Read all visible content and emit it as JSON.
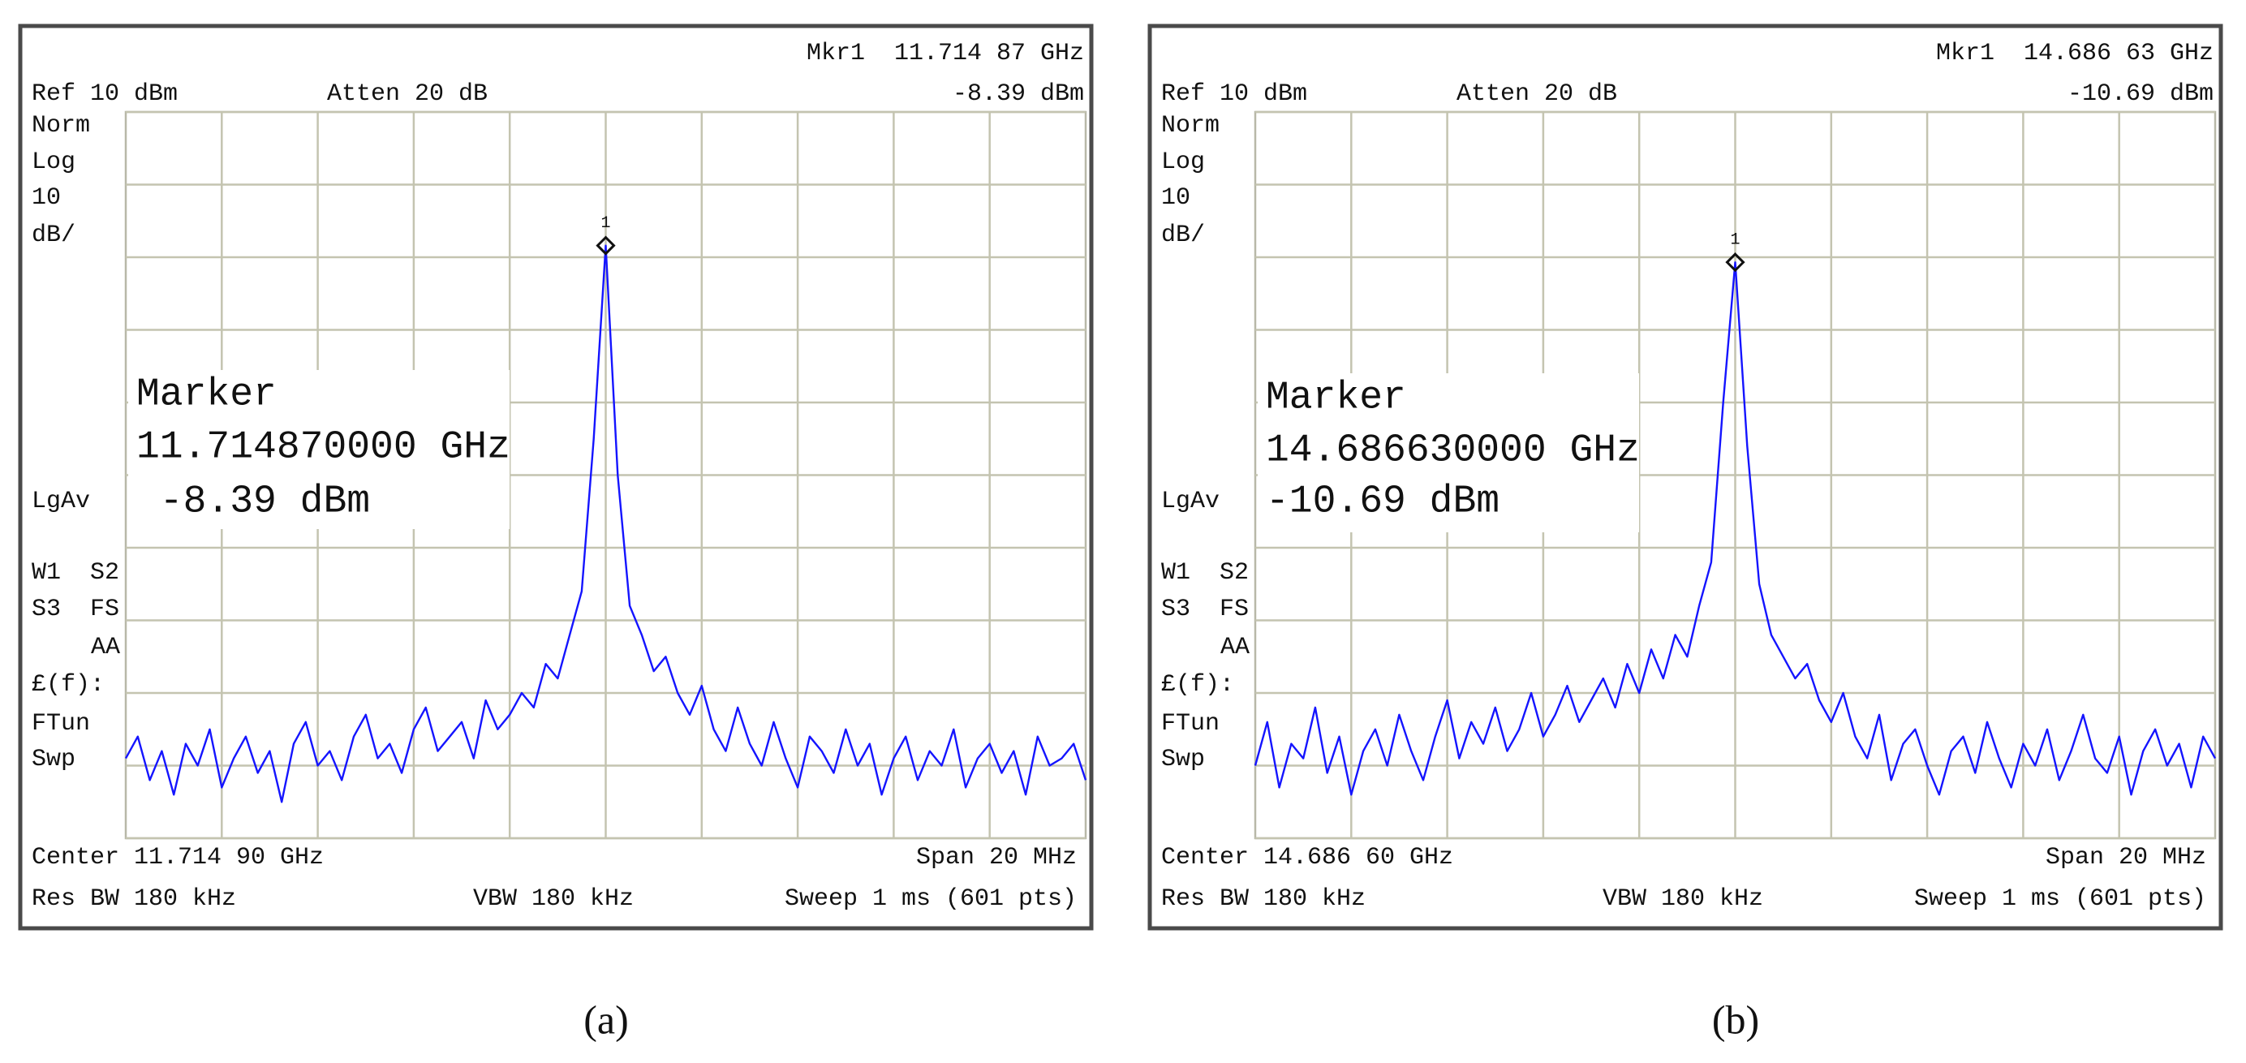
{
  "chart_data": [
    {
      "type": "line",
      "caption": "(a)",
      "color": "#1414ff",
      "ylim": [
        -90,
        10
      ],
      "yticks": [
        -90,
        -80,
        -70,
        -60,
        -50,
        -40,
        -30,
        -20,
        -10,
        0,
        10
      ],
      "grid": true,
      "header": {
        "marker_readout": "Mkr1  11.714 87 GHz",
        "marker_level": "-8.39 dBm",
        "ref": "Ref 10 dBm",
        "atten": "Atten 20 dB"
      },
      "side_labels": [
        "Norm",
        "Log",
        "10",
        "dB/",
        "LgAv",
        "W1  S2",
        "S3  FS",
        "AA",
        "£(f):",
        "FTun",
        "Swp"
      ],
      "marker": {
        "id": "1",
        "title": "Marker",
        "frequency": "11.714870000 GHz",
        "level": " -8.39 dBm",
        "value": -8.39
      },
      "footer": {
        "center": "Center 11.714 90 GHz",
        "span": "Span 20 MHz",
        "rbw": "Res BW 180 kHz",
        "vbw": "VBW 180 kHz",
        "sweep": "Sweep 1 ms (601 pts)"
      },
      "values": [
        -79,
        -76,
        -82,
        -78,
        -84,
        -77,
        -80,
        -75,
        -83,
        -79,
        -76,
        -81,
        -78,
        -85,
        -77,
        -74,
        -80,
        -78,
        -82,
        -76,
        -73,
        -79,
        -77,
        -81,
        -75,
        -72,
        -78,
        -76,
        -74,
        -79,
        -71,
        -75,
        -73,
        -70,
        -72,
        -66,
        -68,
        -62,
        -56,
        -35,
        -8.4,
        -40,
        -58,
        -62,
        -67,
        -65,
        -70,
        -73,
        -69,
        -75,
        -78,
        -72,
        -77,
        -80,
        -74,
        -79,
        -83,
        -76,
        -78,
        -81,
        -75,
        -80,
        -77,
        -84,
        -79,
        -76,
        -82,
        -78,
        -80,
        -75,
        -83,
        -79,
        -77,
        -81,
        -78,
        -84,
        -76,
        -80,
        -79,
        -77,
        -82
      ]
    },
    {
      "type": "line",
      "caption": "(b)",
      "color": "#1414ff",
      "ylim": [
        -90,
        10
      ],
      "yticks": [
        -90,
        -80,
        -70,
        -60,
        -50,
        -40,
        -30,
        -20,
        -10,
        0,
        10
      ],
      "grid": true,
      "header": {
        "marker_readout": "Mkr1  14.686 63 GHz",
        "marker_level": "-10.69 dBm",
        "ref": "Ref 10 dBm",
        "atten": "Atten 20 dB"
      },
      "side_labels": [
        "Norm",
        "Log",
        "10",
        "dB/",
        "LgAv",
        "W1  S2",
        "S3  FS",
        "AA",
        "£(f):",
        "FTun",
        "Swp"
      ],
      "marker": {
        "id": "1",
        "title": "Marker",
        "frequency": "14.686630000 GHz",
        "level": "-10.69 dBm",
        "value": -10.69
      },
      "footer": {
        "center": "Center 14.686 60 GHz",
        "span": "Span 20 MHz",
        "rbw": "Res BW 180 kHz",
        "vbw": "VBW 180 kHz",
        "sweep": "Sweep 1 ms (601 pts)"
      },
      "values": [
        -80,
        -74,
        -83,
        -77,
        -79,
        -72,
        -81,
        -76,
        -84,
        -78,
        -75,
        -80,
        -73,
        -78,
        -82,
        -76,
        -71,
        -79,
        -74,
        -77,
        -72,
        -78,
        -75,
        -70,
        -76,
        -73,
        -69,
        -74,
        -71,
        -68,
        -72,
        -66,
        -70,
        -64,
        -68,
        -62,
        -65,
        -58,
        -52,
        -30,
        -10.7,
        -36,
        -55,
        -62,
        -65,
        -68,
        -66,
        -71,
        -74,
        -70,
        -76,
        -79,
        -73,
        -82,
        -77,
        -75,
        -80,
        -84,
        -78,
        -76,
        -81,
        -74,
        -79,
        -83,
        -77,
        -80,
        -75,
        -82,
        -78,
        -73,
        -79,
        -81,
        -76,
        -84,
        -78,
        -75,
        -80,
        -77,
        -83,
        -76,
        -79
      ]
    }
  ]
}
